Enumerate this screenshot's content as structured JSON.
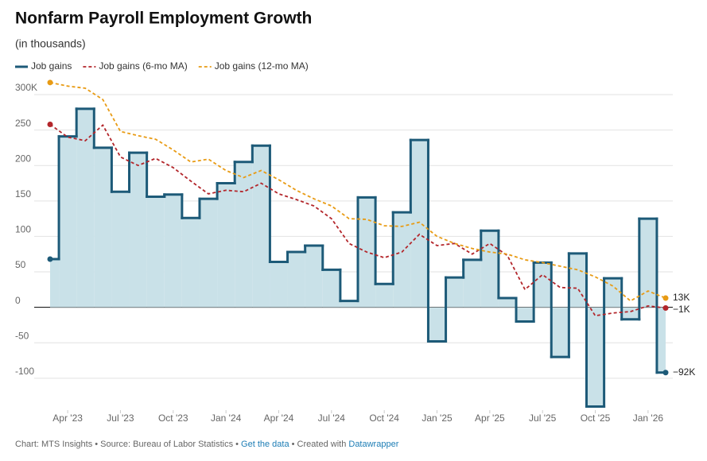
{
  "chart_data": {
    "type": "step",
    "title": "Nonfarm Payroll Employment Growth",
    "subtitle": "(in thousands)",
    "categories": [
      null,
      "Apr '23",
      null,
      null,
      "Jul '23",
      null,
      null,
      "Oct '23",
      null,
      null,
      "Jan '24",
      null,
      null,
      "Apr '24",
      null,
      null,
      "Jul '24",
      null,
      null,
      "Oct '24",
      null,
      null,
      "Jan '25",
      null,
      null,
      "Apr '25",
      null,
      null,
      "Jul '25",
      null,
      null,
      "Oct '25",
      null,
      null,
      "Jan '26",
      null
    ],
    "series": [
      {
        "name": "Job gains",
        "color": "#1d5a78",
        "style": "step",
        "area_color": "#c9e1e8",
        "end_label": "−92K",
        "values": [
          68,
          241,
          280,
          225,
          163,
          218,
          156,
          159,
          126,
          153,
          175,
          205,
          228,
          64,
          78,
          87,
          53,
          9,
          155,
          33,
          134,
          236,
          -48,
          42,
          67,
          108,
          13,
          -20,
          63,
          -70,
          76,
          -140,
          41,
          -17,
          125,
          -92
        ]
      },
      {
        "name": "Job gains (6-mo MA)",
        "color": "#b3262b",
        "style": "dashed",
        "end_label": "−1K",
        "values": [
          258,
          240,
          235,
          257,
          212,
          200,
          210,
          197,
          178,
          160,
          165,
          163,
          175,
          160,
          152,
          143,
          125,
          90,
          78,
          70,
          78,
          103,
          87,
          90,
          75,
          90,
          73,
          25,
          46,
          28,
          27,
          -12,
          -8,
          -6,
          2,
          -1
        ]
      },
      {
        "name": "Job gains (12-mo MA)",
        "color": "#e89b14",
        "style": "dashed",
        "end_label": "13K",
        "values": [
          317,
          312,
          309,
          293,
          248,
          242,
          237,
          222,
          205,
          209,
          193,
          183,
          193,
          180,
          165,
          153,
          143,
          125,
          124,
          115,
          114,
          120,
          100,
          90,
          83,
          78,
          75,
          67,
          63,
          58,
          53,
          43,
          30,
          9,
          23,
          13
        ]
      }
    ],
    "ylim": [
      -145,
      300
    ],
    "yticks": [
      -100,
      -50,
      0,
      50,
      100,
      150,
      200,
      250,
      {
        "value": 300,
        "label": "300K"
      }
    ],
    "grid": true,
    "legend": "top",
    "footer": [
      "Chart: MTS Insights • Source: Bureau of Labor Statistics • ",
      "Get the data",
      " • Created with ",
      "Datawrapper"
    ]
  }
}
